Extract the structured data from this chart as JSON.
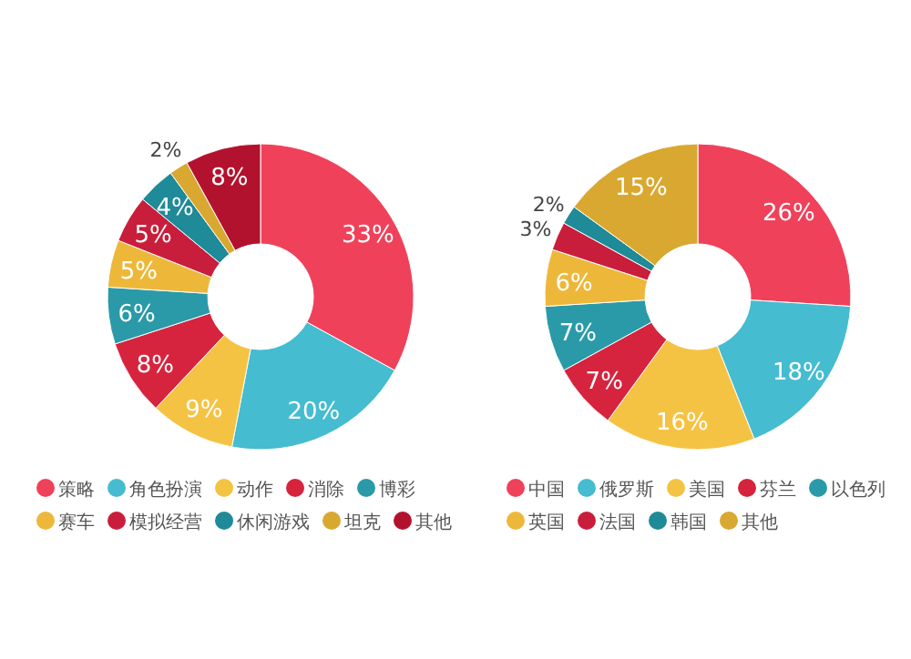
{
  "chart_data": [
    {
      "type": "donut",
      "categories": [
        "策略",
        "角色扮演",
        "动作",
        "消除",
        "博彩",
        "赛车",
        "模拟经营",
        "休闲游戏",
        "坦克",
        "其他"
      ],
      "values": [
        33,
        20,
        9,
        8,
        6,
        5,
        5,
        4,
        2,
        8
      ],
      "value_labels": [
        "33%",
        "20%",
        "9%",
        "8%",
        "6%",
        "5%",
        "5%",
        "4%",
        "2%",
        "8%"
      ],
      "colors": [
        "#f0415a",
        "#45bcd0",
        "#f5c343",
        "#d6243f",
        "#2a9aa8",
        "#edb83a",
        "#c81e3c",
        "#1f8a98",
        "#d9a830",
        "#b3122e"
      ],
      "legend": "bottom"
    },
    {
      "type": "donut",
      "categories": [
        "中国",
        "俄罗斯",
        "美国",
        "芬兰",
        "以色列",
        "英国",
        "法国",
        "韩国",
        "其他"
      ],
      "values": [
        26,
        18,
        16,
        7,
        7,
        6,
        3,
        2,
        15
      ],
      "value_labels": [
        "26%",
        "18%",
        "16%",
        "7%",
        "7%",
        "6%",
        "3%",
        "2%",
        "15%"
      ],
      "colors": [
        "#f0415a",
        "#45bcd0",
        "#f5c343",
        "#d6243f",
        "#2a9aa8",
        "#edb83a",
        "#c81e3c",
        "#1f8a98",
        "#d9a830"
      ],
      "legend": "bottom"
    }
  ]
}
